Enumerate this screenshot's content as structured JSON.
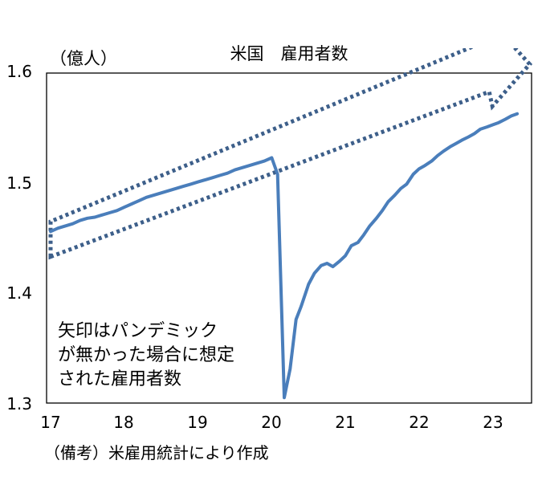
{
  "chart_data": {
    "type": "line",
    "title": "米国　雇用者数",
    "ylabel": "（億人）",
    "xlabel": "",
    "ylim": [
      1.3,
      1.6
    ],
    "xlim": [
      17,
      23.6
    ],
    "yticks": [
      1.3,
      1.4,
      1.5,
      1.6
    ],
    "ytick_labels": [
      "1.3",
      "1.4",
      "1.5",
      "1.6"
    ],
    "xticks": [
      17,
      18,
      19,
      20,
      21,
      22,
      23
    ],
    "xtick_labels": [
      "17",
      "18",
      "19",
      "20",
      "21",
      "22",
      "23"
    ],
    "grid": false,
    "color": "#4a7ebb",
    "trend_color": "#3d5f8a",
    "series": [
      {
        "name": "雇用者数",
        "x": [
          17.0,
          17.1,
          17.2,
          17.3,
          17.4,
          17.5,
          17.6,
          17.7,
          17.8,
          17.9,
          18.0,
          18.1,
          18.2,
          18.3,
          18.4,
          18.5,
          18.6,
          18.7,
          18.8,
          18.9,
          19.0,
          19.1,
          19.2,
          19.3,
          19.4,
          19.5,
          19.6,
          19.7,
          19.8,
          19.9,
          20.0,
          20.08,
          20.17,
          20.25,
          20.33,
          20.4,
          20.5,
          20.58,
          20.67,
          20.75,
          20.83,
          20.92,
          21.0,
          21.08,
          21.17,
          21.25,
          21.33,
          21.42,
          21.5,
          21.58,
          21.67,
          21.75,
          21.83,
          21.92,
          22.0,
          22.08,
          22.17,
          22.25,
          22.33,
          22.42,
          22.5,
          22.58,
          22.67,
          22.75,
          22.83,
          22.92,
          23.0,
          23.08,
          23.17,
          23.25,
          23.33
        ],
        "values": [
          1.456,
          1.459,
          1.461,
          1.463,
          1.466,
          1.468,
          1.469,
          1.471,
          1.473,
          1.475,
          1.478,
          1.481,
          1.484,
          1.487,
          1.489,
          1.491,
          1.493,
          1.495,
          1.497,
          1.499,
          1.501,
          1.503,
          1.505,
          1.507,
          1.509,
          1.512,
          1.514,
          1.516,
          1.518,
          1.52,
          1.523,
          1.508,
          1.305,
          1.331,
          1.376,
          1.388,
          1.408,
          1.418,
          1.425,
          1.427,
          1.424,
          1.429,
          1.434,
          1.443,
          1.446,
          1.453,
          1.461,
          1.468,
          1.475,
          1.483,
          1.489,
          1.495,
          1.499,
          1.508,
          1.513,
          1.516,
          1.52,
          1.525,
          1.529,
          1.533,
          1.536,
          1.539,
          1.542,
          1.545,
          1.549,
          1.551,
          1.553,
          1.555,
          1.558,
          1.561,
          1.563
        ]
      }
    ],
    "trend_band": {
      "label": "パンデミックが無かった場合に想定された雇用者数",
      "upper": {
        "x": [
          17.0,
          23.05
        ],
        "values": [
          1.465,
          1.633
        ]
      },
      "lower": {
        "x": [
          17.0,
          22.95
        ],
        "values": [
          1.433,
          1.583
        ]
      },
      "arrow_tip": {
        "x": 23.5,
        "value": 1.608
      }
    }
  },
  "annotation_lines": [
    "矢印はパンデミック",
    "が無かった場合に想定",
    "された雇用者数"
  ],
  "source": "（備考）米雇用統計により作成"
}
